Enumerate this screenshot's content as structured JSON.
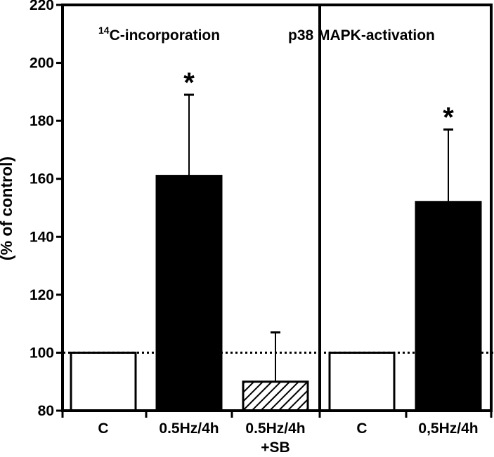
{
  "chart_data": {
    "type": "bar",
    "ylabel": "(% of control)",
    "ylim": [
      80,
      220
    ],
    "yticks": [
      "80",
      "100",
      "120",
      "140",
      "160",
      "180",
      "200",
      "220"
    ],
    "reference_line": 100,
    "grid": false,
    "panels": [
      {
        "title_prefix": "14",
        "title": "C-incorporation",
        "categories": [
          "C",
          "0.5Hz/4h",
          "0.5Hz/4h\n+SB"
        ],
        "values": [
          100,
          161,
          90
        ],
        "errors": [
          null,
          28,
          17
        ],
        "fills": [
          "white",
          "black",
          "hatched"
        ],
        "significance": [
          "",
          "*",
          ""
        ]
      },
      {
        "title": "p38 MAPK-activation",
        "categories": [
          "C",
          "0,5Hz/4h"
        ],
        "values": [
          100,
          152
        ],
        "errors": [
          null,
          25
        ],
        "fills": [
          "white",
          "black"
        ],
        "significance": [
          "",
          "*"
        ]
      }
    ]
  }
}
